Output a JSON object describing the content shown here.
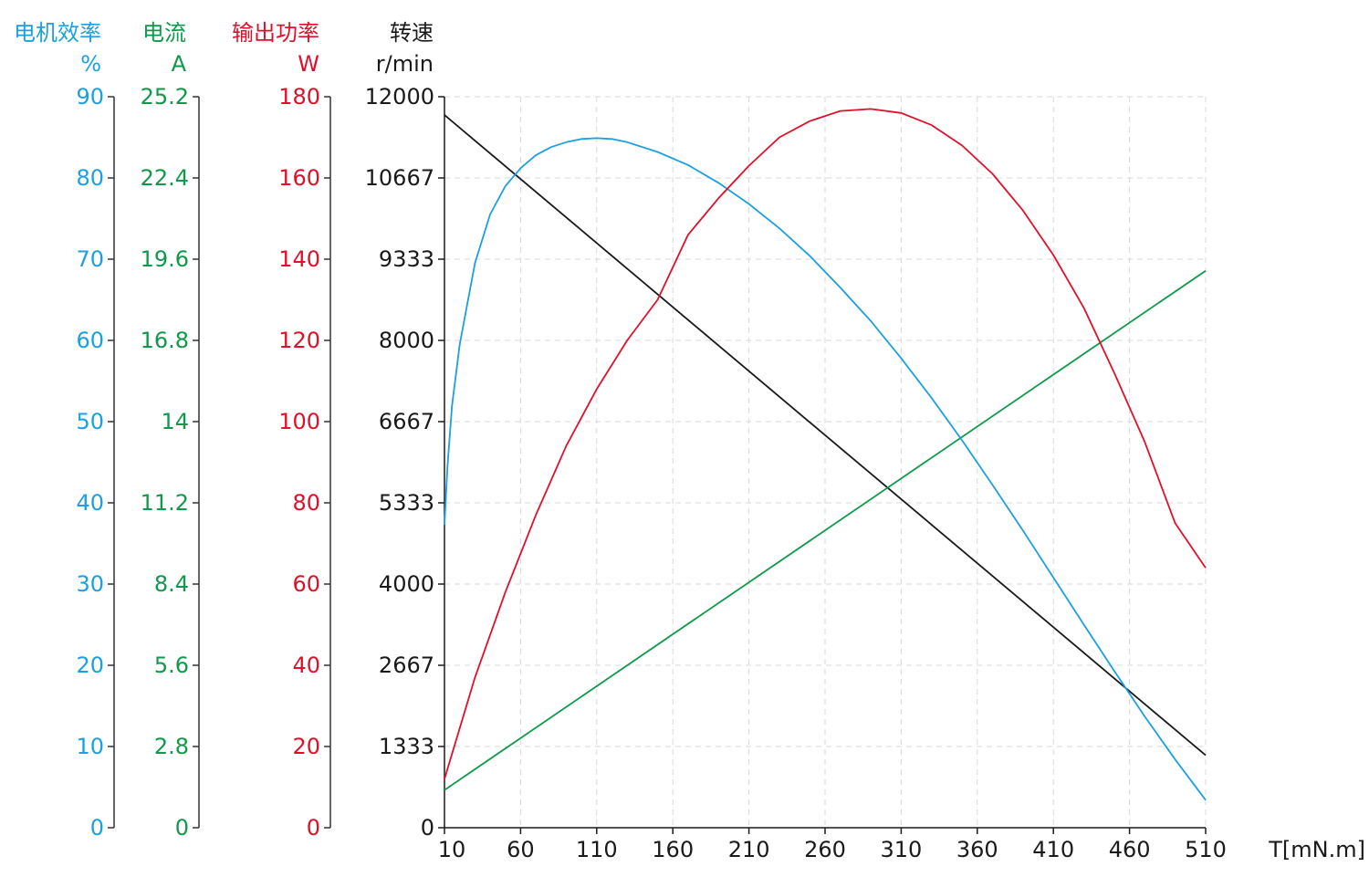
{
  "chart_data": {
    "type": "line",
    "x_axis": {
      "label": "T[mN.m]",
      "ticks": [
        "10",
        "60",
        "110",
        "160",
        "210",
        "260",
        "310",
        "360",
        "410",
        "460",
        "510"
      ],
      "range": [
        10,
        510
      ],
      "grid": true
    },
    "y_axes": [
      {
        "key": "eff",
        "title": "电机效率",
        "unit": "%",
        "color": "#1ba0e0",
        "range": [
          0,
          90
        ],
        "ticks": [
          "0",
          "10",
          "20",
          "30",
          "40",
          "50",
          "60",
          "70",
          "80",
          "90"
        ]
      },
      {
        "key": "cur",
        "title": "电流",
        "unit": "A",
        "color": "#0d9a4a",
        "range": [
          0,
          25.2
        ],
        "ticks": [
          "0",
          "2.8",
          "5.6",
          "8.4",
          "11.2",
          "14",
          "16.8",
          "19.6",
          "22.4",
          "25.2"
        ]
      },
      {
        "key": "pow",
        "title": "输出功率",
        "unit": "W",
        "color": "#e0102a",
        "range": [
          0,
          180
        ],
        "ticks": [
          "0",
          "20",
          "40",
          "60",
          "80",
          "100",
          "120",
          "140",
          "160",
          "180"
        ]
      },
      {
        "key": "speed",
        "title": "转速",
        "unit": "r/min",
        "color": "#1a1a1a",
        "range": [
          0,
          12000
        ],
        "ticks": [
          "0",
          "1333",
          "2667",
          "4000",
          "5333",
          "6667",
          "8000",
          "9333",
          "10667",
          "12000"
        ]
      }
    ],
    "series": [
      {
        "axis": "speed",
        "color": "#1a1a1a",
        "x": [
          10,
          510
        ],
        "y": [
          11700,
          1190
        ]
      },
      {
        "axis": "cur",
        "color": "#0d9a4a",
        "x": [
          10,
          510
        ],
        "y": [
          1.3,
          19.2
        ]
      },
      {
        "axis": "eff",
        "color": "#1ba0e0",
        "x": [
          10,
          12,
          15,
          20,
          30,
          40,
          50,
          60,
          70,
          80,
          90,
          100,
          110,
          120,
          130,
          150,
          170,
          190,
          210,
          230,
          250,
          270,
          290,
          310,
          330,
          350,
          370,
          390,
          410,
          430,
          450,
          470,
          490,
          510
        ],
        "y": [
          37.3,
          44.5,
          52.0,
          59.5,
          69.5,
          75.5,
          79.0,
          81.2,
          82.8,
          83.8,
          84.4,
          84.8,
          84.9,
          84.8,
          84.4,
          83.2,
          81.6,
          79.4,
          76.8,
          73.8,
          70.4,
          66.5,
          62.4,
          57.8,
          52.9,
          47.7,
          42.2,
          36.6,
          30.8,
          25.0,
          19.3,
          13.7,
          8.4,
          3.4
        ]
      },
      {
        "axis": "pow",
        "color": "#e0102a",
        "x": [
          10,
          30,
          50,
          70,
          90,
          110,
          130,
          150,
          170,
          190,
          210,
          230,
          250,
          270,
          290,
          310,
          330,
          350,
          370,
          390,
          410,
          430,
          450,
          470,
          490,
          510
        ],
        "y": [
          12,
          37,
          58,
          77,
          94,
          108,
          120,
          130,
          146,
          155,
          163,
          170,
          174,
          176.5,
          177,
          176,
          173,
          168,
          161,
          152,
          141,
          128,
          112,
          95,
          75,
          64
        ]
      }
    ]
  }
}
